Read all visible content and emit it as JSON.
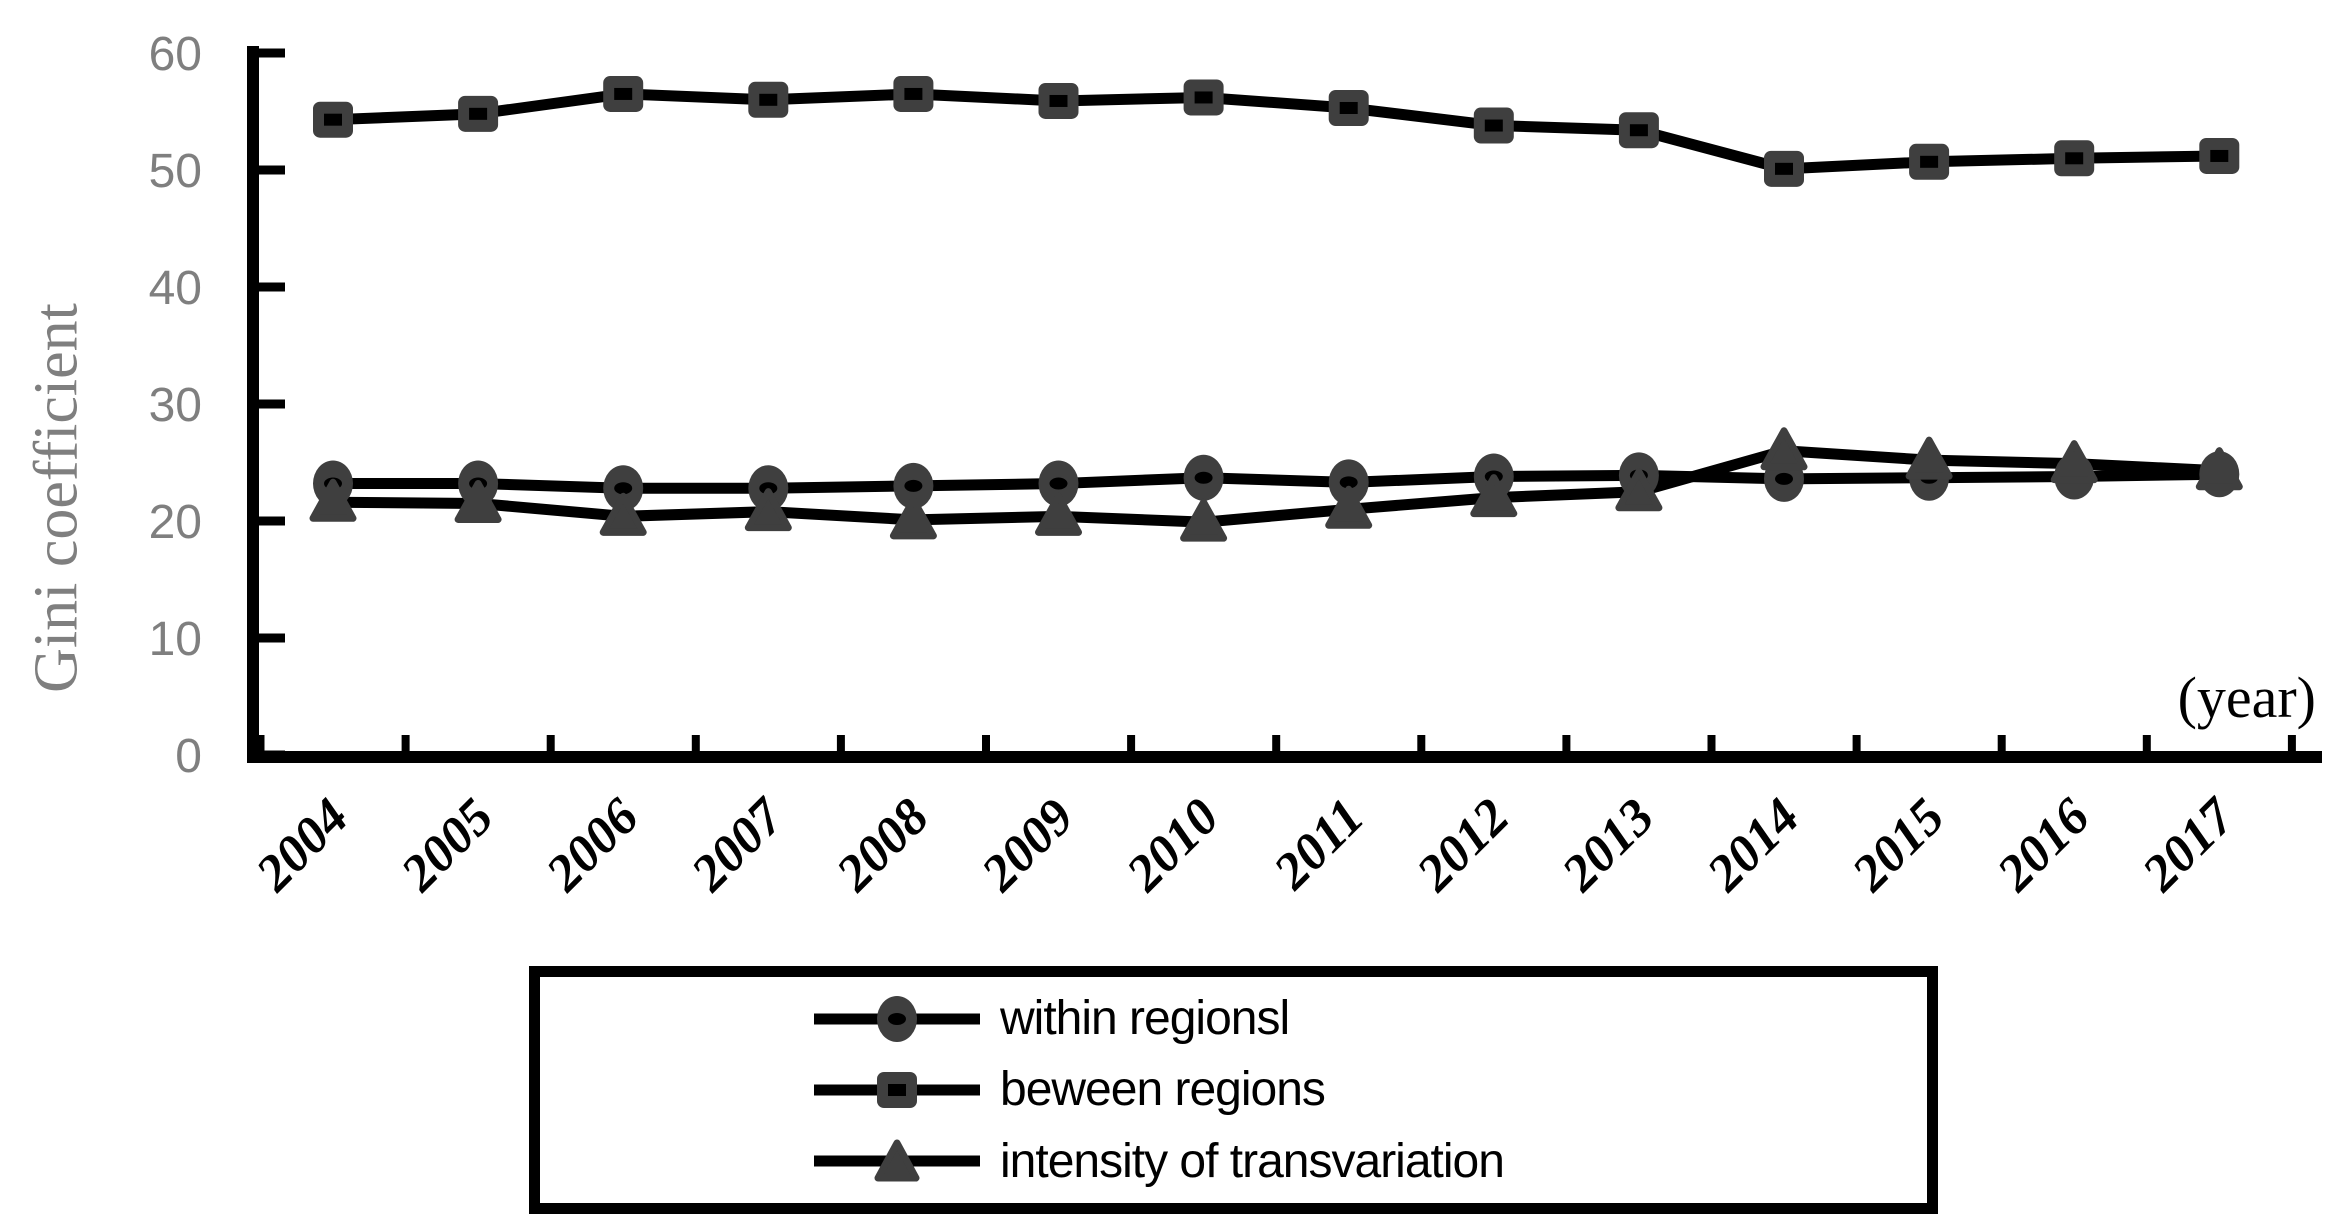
{
  "chart_data": {
    "type": "line",
    "title": "",
    "ylabel": "Gini coefficient",
    "xlabel": "(year)",
    "ylim": [
      0,
      60
    ],
    "yticks": [
      0,
      10,
      20,
      30,
      40,
      50,
      60
    ],
    "grid": false,
    "legend_position": "bottom-boxed",
    "categories": [
      "2004",
      "2005",
      "2006",
      "2007",
      "2008",
      "2009",
      "2010",
      "2011",
      "2012",
      "2013",
      "2014",
      "2015",
      "2016",
      "2017"
    ],
    "series": [
      {
        "name": "within regionsl",
        "marker": "circle",
        "values": [
          23.2,
          23.2,
          22.8,
          22.8,
          23.0,
          23.2,
          23.7,
          23.3,
          23.8,
          23.9,
          23.6,
          23.7,
          23.8,
          24.0
        ]
      },
      {
        "name": "beween regions",
        "marker": "square",
        "values": [
          54.3,
          54.8,
          56.5,
          56.0,
          56.5,
          55.9,
          56.2,
          55.3,
          53.8,
          53.4,
          50.1,
          50.7,
          51.0,
          51.2
        ]
      },
      {
        "name": "intensity of transvariation",
        "marker": "triangle",
        "values": [
          21.6,
          21.5,
          20.4,
          20.8,
          20.1,
          20.4,
          19.9,
          21.0,
          22.0,
          22.5,
          26.0,
          25.2,
          24.9,
          24.3
        ]
      }
    ],
    "colors": {
      "line": "#000000",
      "marker_fill": "#3f3f3f",
      "tick_label_text": "#7f7f7f",
      "axis_label_text": "#7f7f7f",
      "category_text": "#000000",
      "background": "#ffffff",
      "legend_border": "#000000"
    }
  }
}
